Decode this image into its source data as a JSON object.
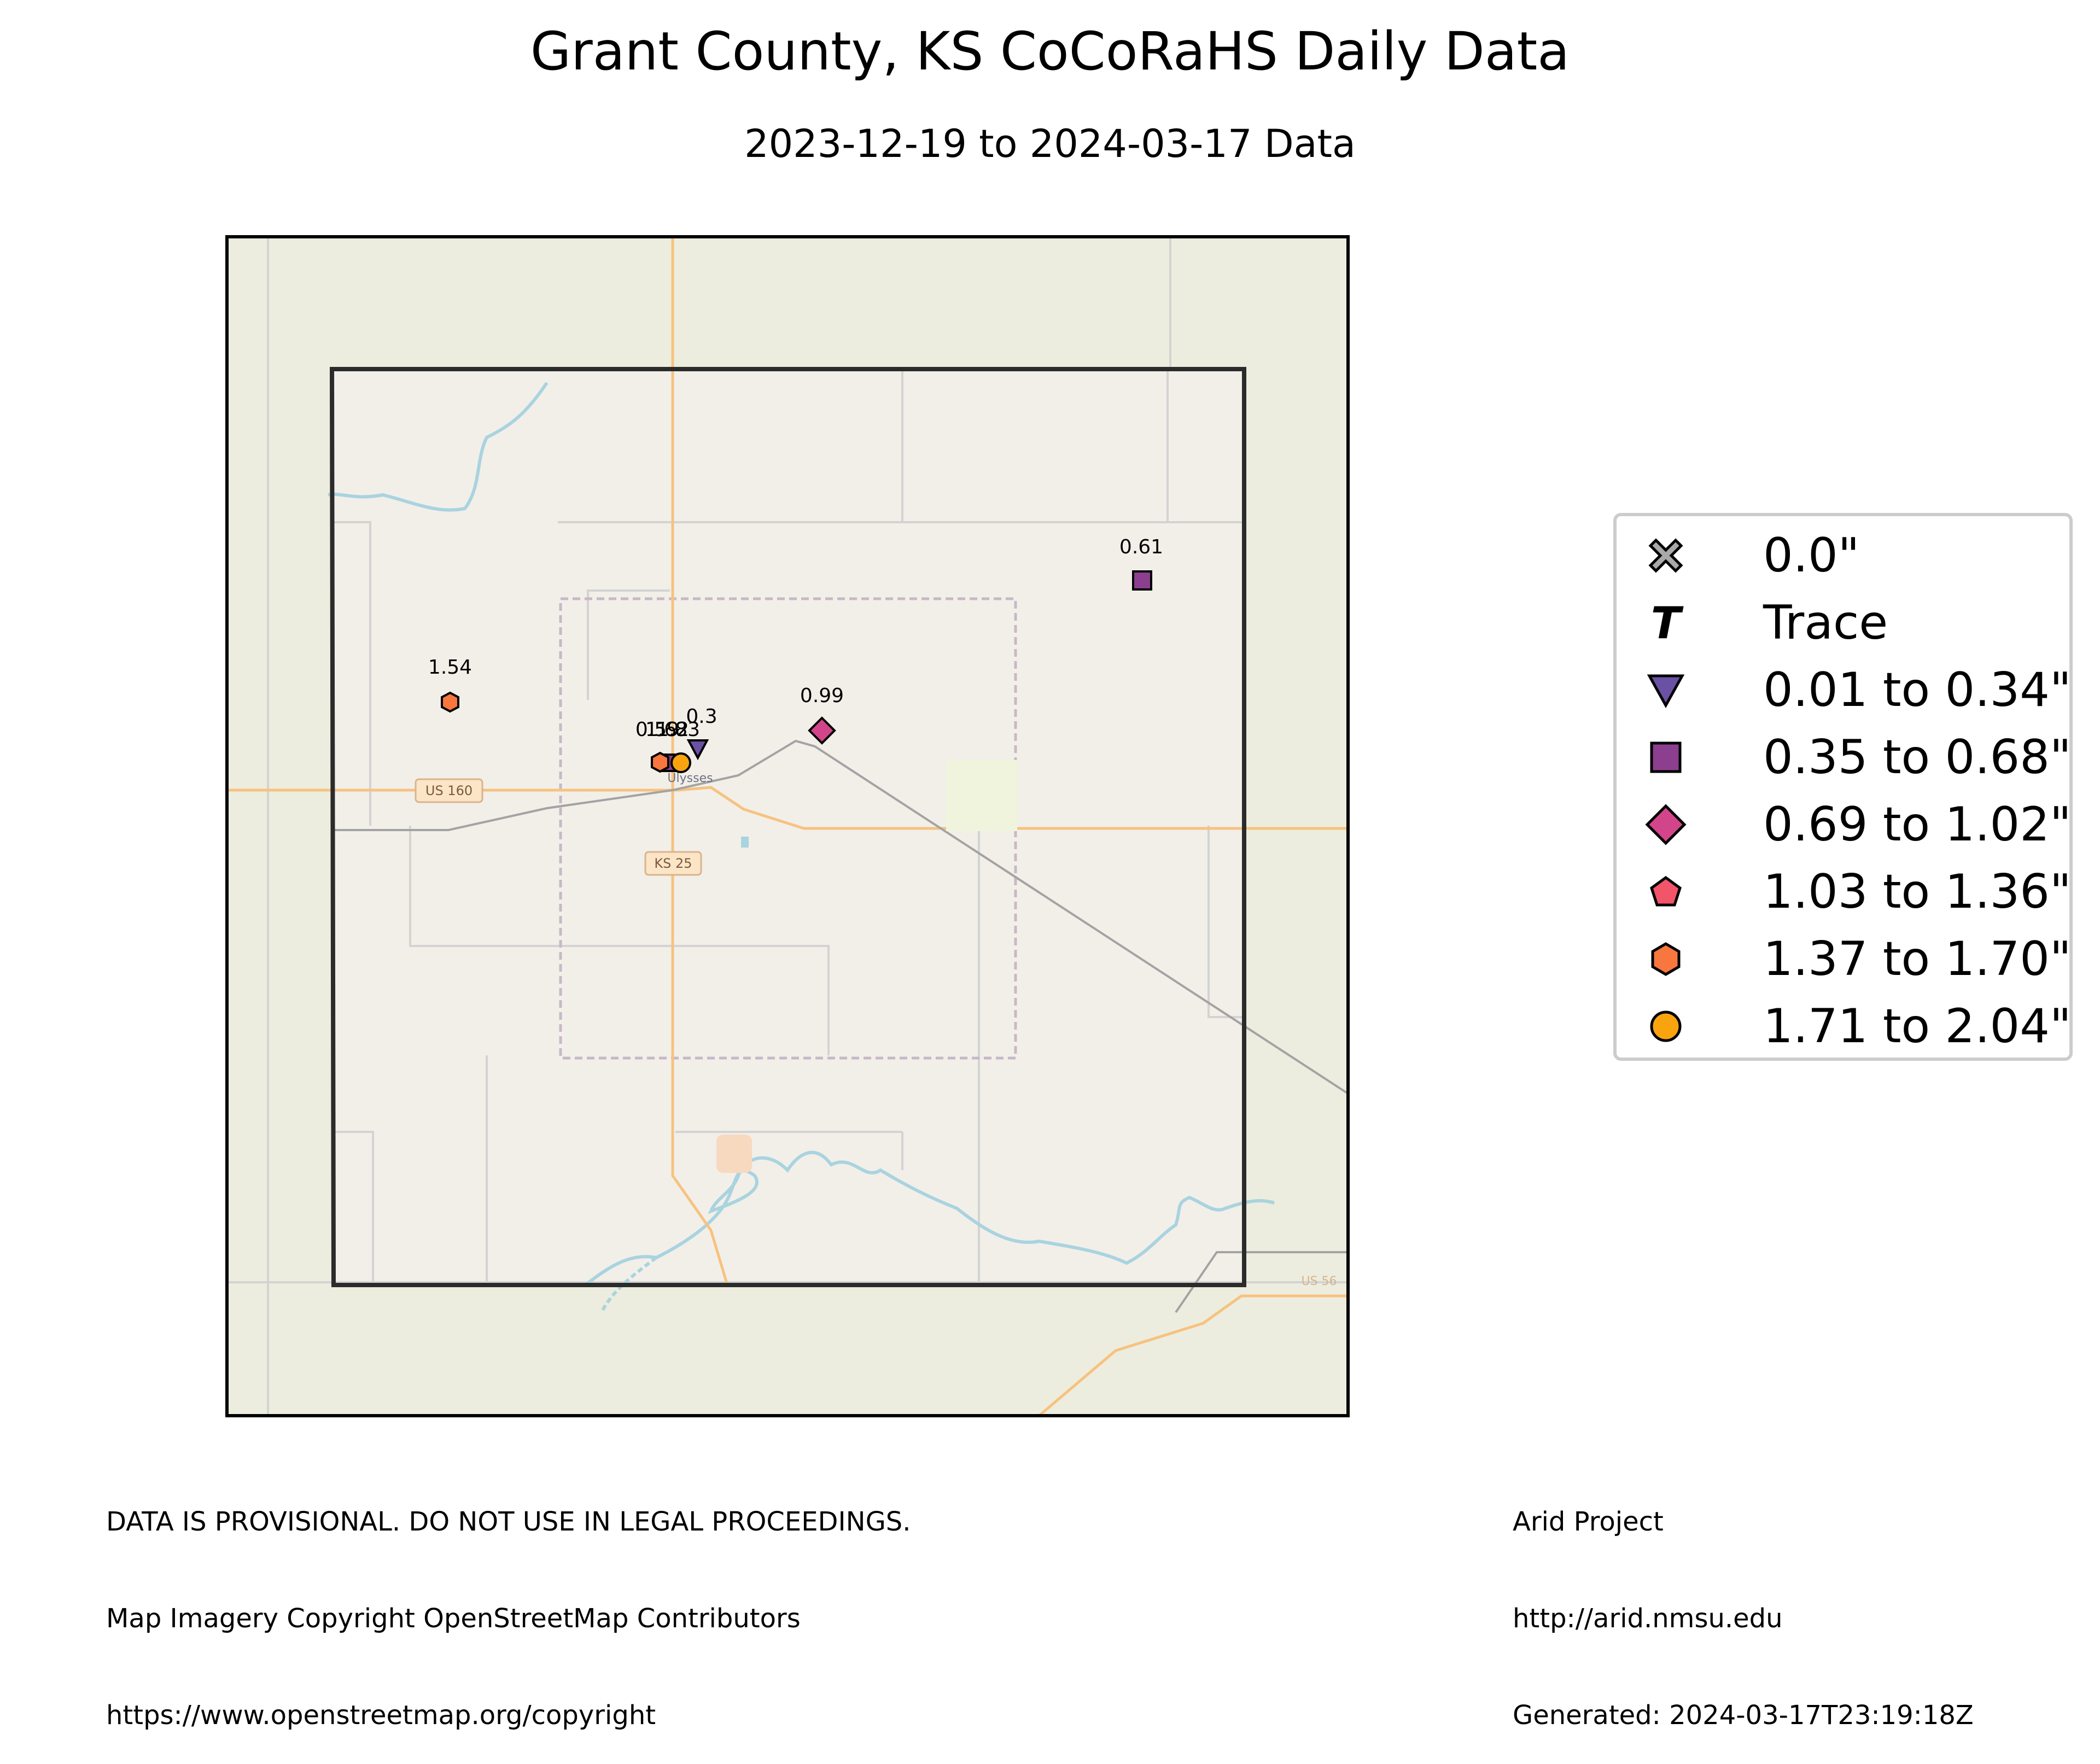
{
  "title": "Grant County, KS CoCoRaHS Daily Data",
  "subtitle": "2023-12-19 to 2024-03-17 Data",
  "map": {
    "place_label": "Ulysses",
    "road_labels": {
      "us160": "US 160",
      "ks25": "KS 25",
      "us56": "US 56"
    }
  },
  "stations": [
    {
      "value_label": "0.61",
      "category": "0.35 to 0.68\""
    },
    {
      "value_label": "1.54",
      "category": "1.37 to 1.70\""
    },
    {
      "value_label": "0.99",
      "category": "0.69 to 1.02\""
    },
    {
      "value_label": "0.3",
      "category": "0.01 to 0.34\""
    },
    {
      "value_label": "0.59",
      "category": "0.35 to 0.68\""
    },
    {
      "value_label": "1.62",
      "category": "1.37 to 1.70\""
    },
    {
      "value_label": "1.83",
      "category": "1.71 to 2.04\""
    }
  ],
  "legend": {
    "items": [
      {
        "label": "0.0\"",
        "icon": "x-mark-icon",
        "color": "#a9a9a9"
      },
      {
        "label": "Trace",
        "icon": "trace-t-icon",
        "color": "#000000"
      },
      {
        "label": "0.01 to 0.34\"",
        "icon": "triangle-down-icon",
        "color": "#6a51a3"
      },
      {
        "label": "0.35 to 0.68\"",
        "icon": "square-icon",
        "color": "#8c3f8e"
      },
      {
        "label": "0.69 to 1.02\"",
        "icon": "diamond-icon",
        "color": "#d3458a"
      },
      {
        "label": "1.03 to 1.36\"",
        "icon": "pentagon-icon",
        "color": "#f2546a"
      },
      {
        "label": "1.37 to 1.70\"",
        "icon": "hexagon-icon",
        "color": "#f7773f"
      },
      {
        "label": "1.71 to 2.04\"",
        "icon": "circle-icon",
        "color": "#f9a40f"
      }
    ]
  },
  "footer": {
    "left": [
      "DATA IS PROVISIONAL. DO NOT USE IN LEGAL PROCEEDINGS.",
      "Map Imagery Copyright OpenStreetMap Contributors",
      "https://www.openstreetmap.org/copyright"
    ],
    "right": [
      "Arid Project",
      "http://arid.nmsu.edu",
      "Generated: 2024-03-17T23:19:18Z"
    ]
  }
}
